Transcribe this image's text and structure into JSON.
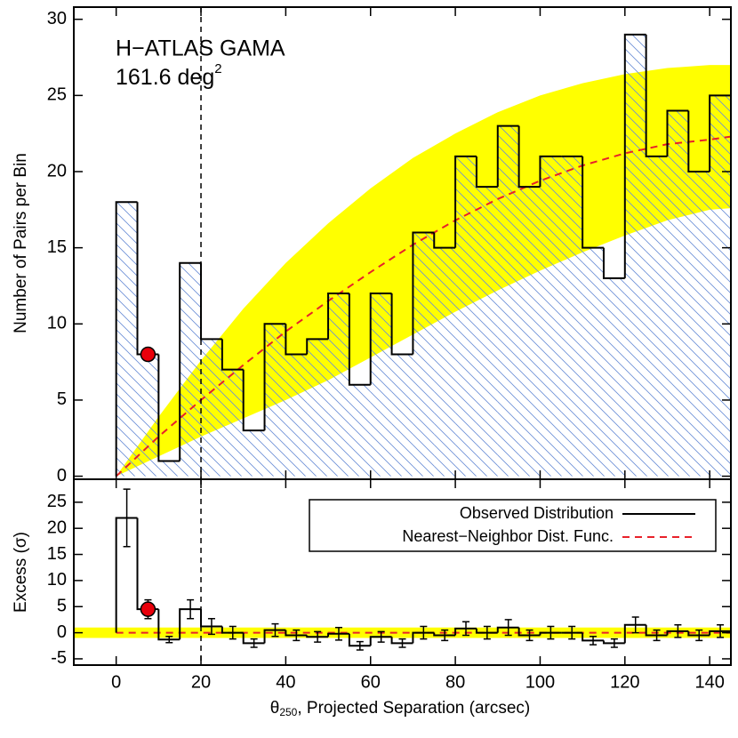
{
  "chart_data": [
    {
      "type": "histogram",
      "annotation": {
        "line1": "H−ATLAS GAMA",
        "line2": "161.6 deg",
        "superscript": "2"
      },
      "ylabel": "Number of Pairs per Bin",
      "bins": [
        0,
        5,
        10,
        15,
        20,
        25,
        30,
        35,
        40,
        45,
        50,
        55,
        60,
        65,
        70,
        75,
        80,
        85,
        90,
        95,
        100,
        105,
        110,
        115,
        120,
        125,
        130,
        135,
        140,
        145
      ],
      "counts": [
        18,
        8,
        1,
        14,
        9,
        7,
        3,
        10,
        8,
        9,
        12,
        6,
        12,
        8,
        16,
        15,
        21,
        19,
        23,
        19,
        21,
        21,
        15,
        13,
        29,
        21,
        24,
        20,
        25
      ],
      "color": "#000000",
      "hatch_color": "#6a8ed6",
      "curve_x": [
        0,
        10,
        20,
        30,
        40,
        50,
        60,
        70,
        80,
        90,
        100,
        110,
        120,
        130,
        140,
        145
      ],
      "model": {
        "values": [
          0,
          2.6,
          5.0,
          7.3,
          9.5,
          11.5,
          13.4,
          15.2,
          16.8,
          18.2,
          19.4,
          20.4,
          21.2,
          21.8,
          22.1,
          22.3
        ],
        "color": "#e8212a"
      },
      "band": {
        "upper": [
          0,
          3.9,
          7.6,
          11.0,
          14.0,
          16.6,
          18.9,
          20.9,
          22.5,
          23.9,
          25.0,
          25.8,
          26.4,
          26.8,
          27.0,
          27.0
        ],
        "lower": [
          0,
          1.3,
          2.6,
          3.8,
          5.0,
          6.3,
          7.8,
          9.3,
          10.8,
          12.2,
          13.5,
          14.7,
          15.8,
          16.8,
          17.5,
          17.6
        ],
        "color": "#ffff00"
      },
      "marker": {
        "x": 7.5,
        "y": 8,
        "color": "#e8000b"
      },
      "vline_x": 20,
      "xlim": [
        -10,
        145
      ],
      "ylim": [
        -0.2,
        30.8
      ],
      "yticks": [
        0,
        5,
        10,
        15,
        20,
        25,
        30
      ]
    },
    {
      "type": "errorbar",
      "ylabel": "Excess (σ)",
      "xlabel": {
        "symbol": "θ",
        "subscript": "250",
        "text": ", Projected Separation (arcsec)"
      },
      "values": [
        22,
        4.5,
        -1.3,
        4.5,
        1.2,
        0,
        -2,
        0.5,
        -0.5,
        -0.8,
        -0.2,
        -2.5,
        -0.8,
        -2,
        0,
        -0.5,
        0.8,
        0,
        1,
        -0.5,
        0,
        0,
        -1.5,
        -2,
        1.5,
        -0.5,
        0.3,
        -0.5,
        0.3
      ],
      "errors": [
        5.5,
        1.8,
        0.6,
        1.8,
        1.5,
        1.2,
        0.8,
        1.2,
        1,
        1,
        1.2,
        0.8,
        1,
        0.8,
        1.2,
        1,
        1.3,
        1.2,
        1.5,
        1,
        1.2,
        1.2,
        0.8,
        0.8,
        1.5,
        1,
        1.2,
        1,
        1.2
      ],
      "marker": {
        "x": 7.5,
        "y": 4.5,
        "color": "#e8000b"
      },
      "band": [
        -1,
        1
      ],
      "legend": {
        "position": "upper right",
        "entries": [
          {
            "name": "Observed Distribution",
            "color": "#000000",
            "dashed": false
          },
          {
            "name": "Nearest−Neighbor Dist. Func.",
            "color": "#e8212a",
            "dashed": true
          }
        ]
      },
      "xlim": [
        -10,
        145
      ],
      "xticks": [
        0,
        20,
        40,
        60,
        80,
        100,
        120,
        140
      ],
      "ylim": [
        -6.2,
        29.4
      ],
      "yticks": [
        -5,
        0,
        5,
        10,
        15,
        20,
        25
      ]
    }
  ]
}
